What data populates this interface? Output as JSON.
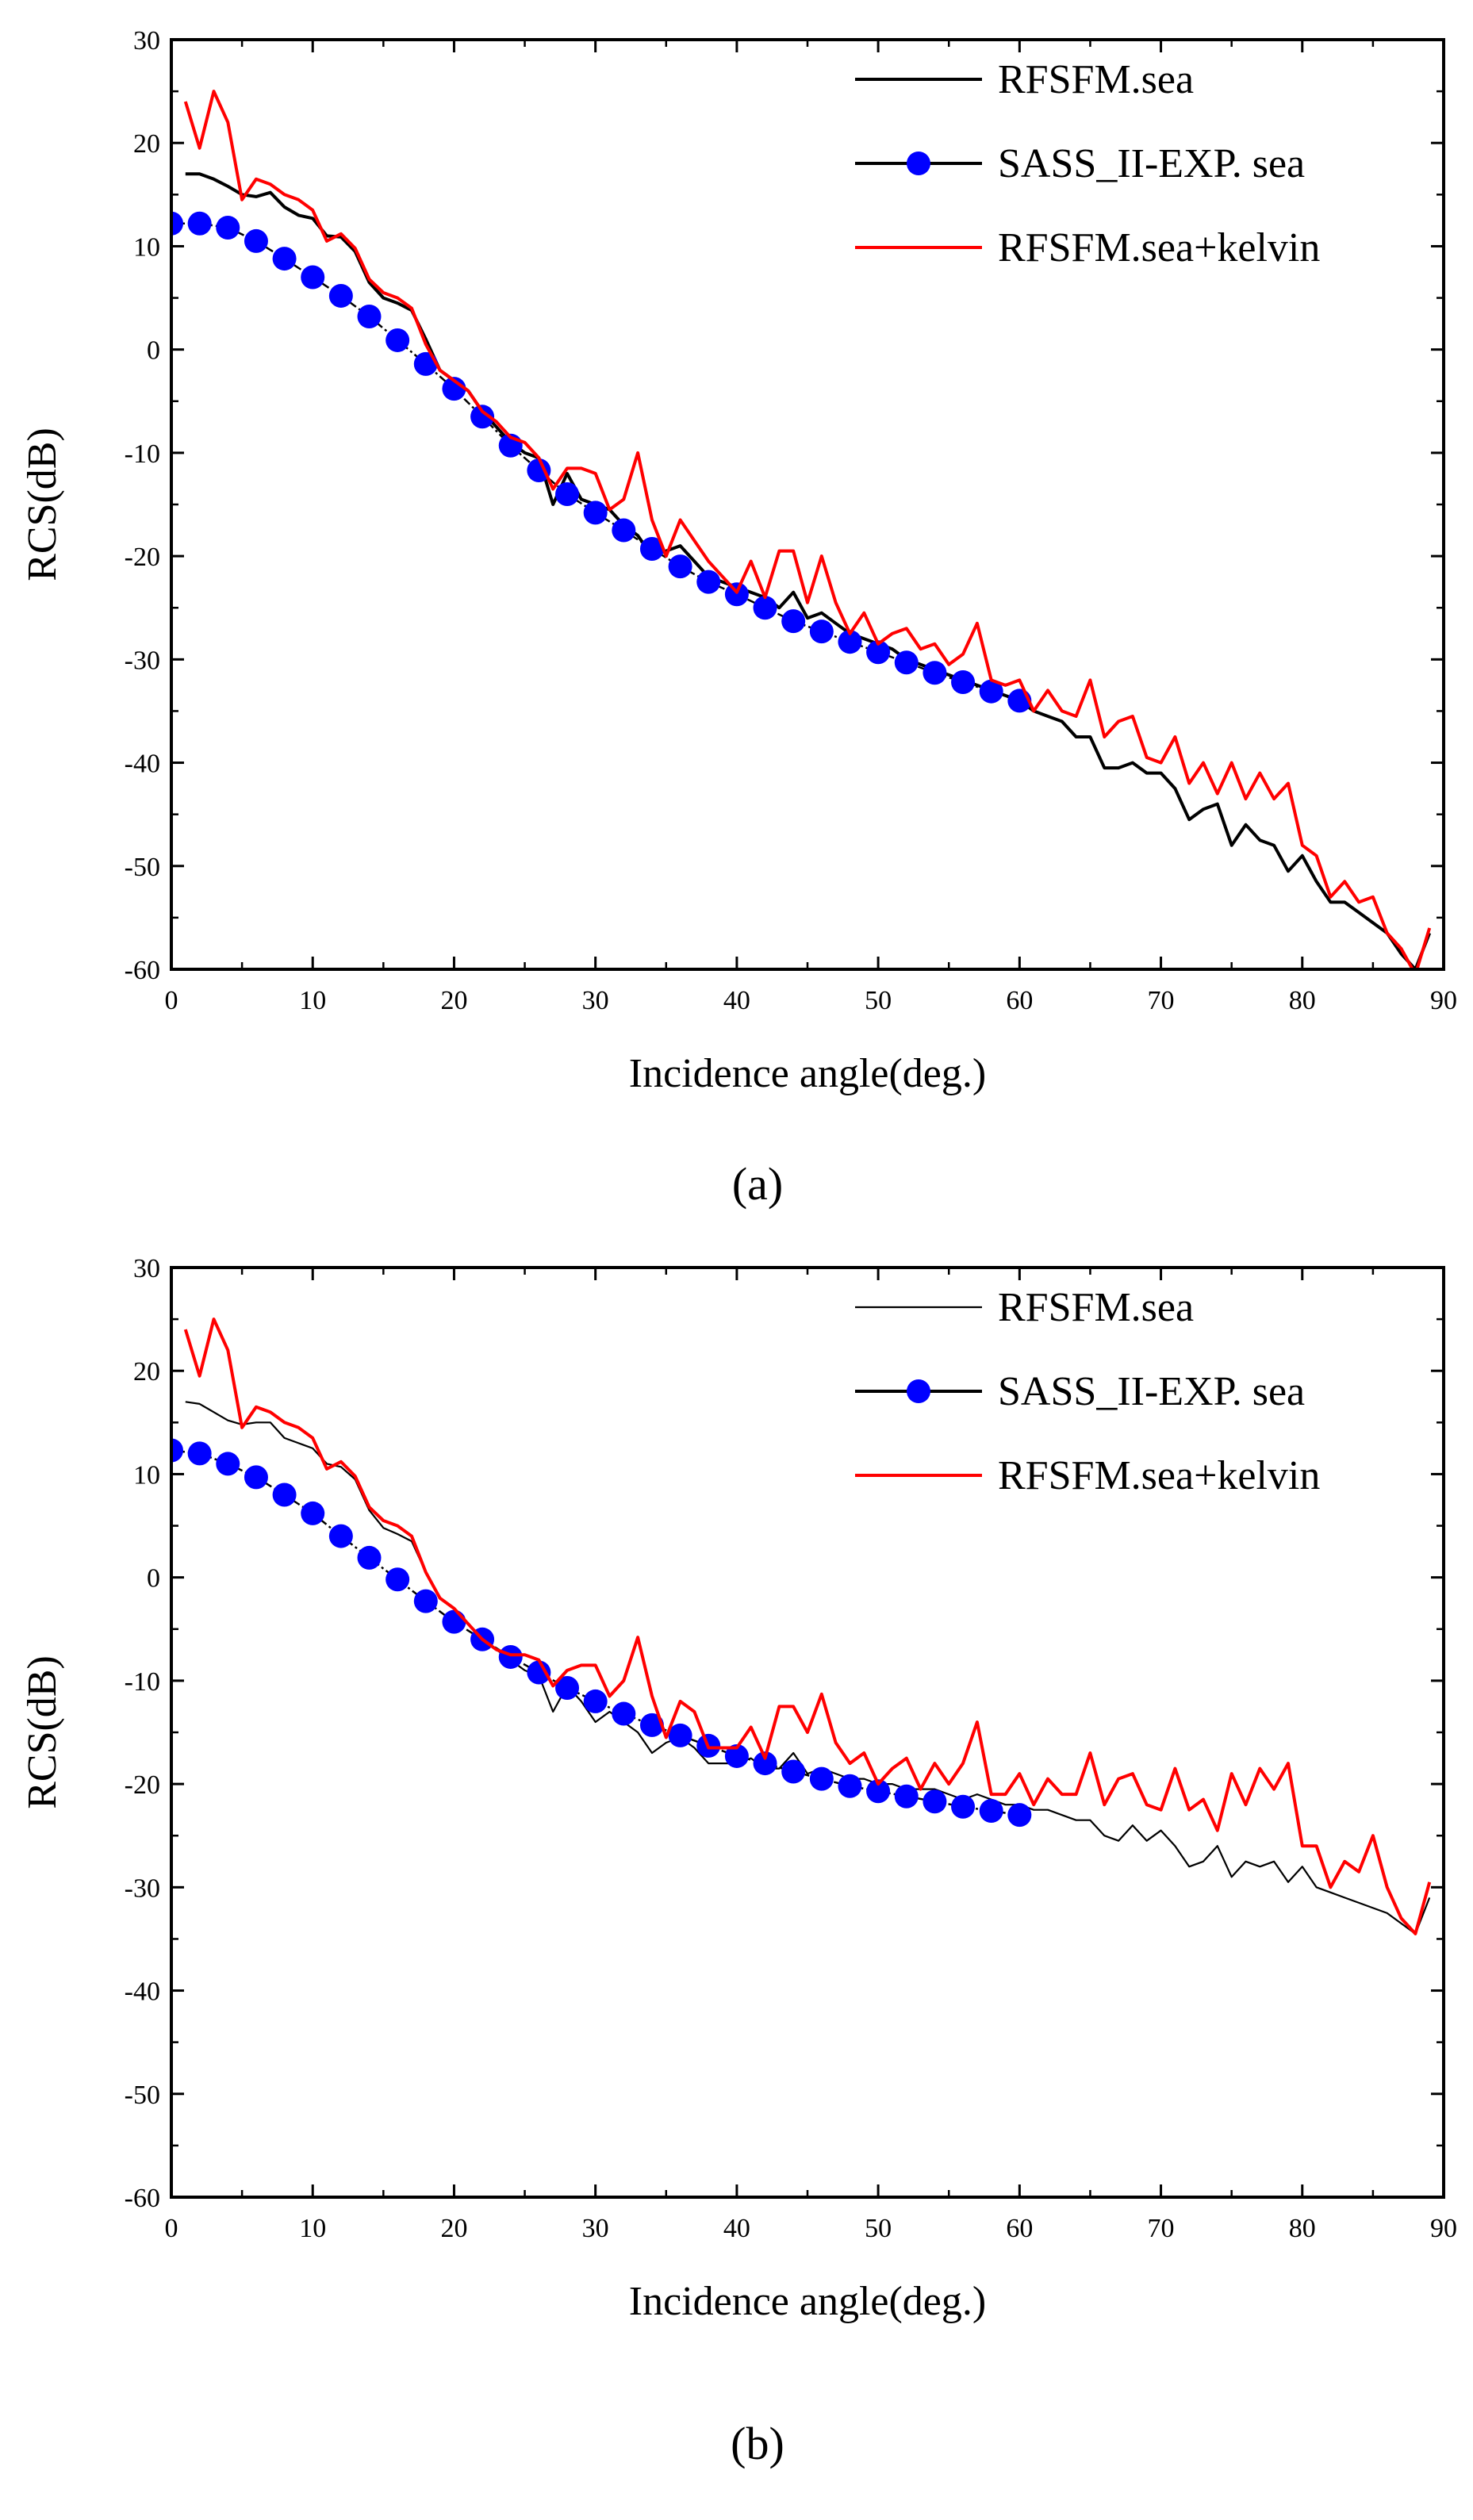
{
  "chart_data": [
    {
      "type": "line",
      "panel_label": "(a)",
      "xlabel": "Incidence angle(deg.)",
      "ylabel": "RCS(dB)",
      "xlim": [
        0,
        90
      ],
      "ylim": [
        -60,
        30
      ],
      "xticks": [
        0,
        10,
        20,
        30,
        40,
        50,
        60,
        70,
        80,
        90
      ],
      "yticks": [
        30,
        20,
        10,
        0,
        -10,
        -20,
        -30,
        -40,
        -50,
        -60
      ],
      "legend_position": "top-right",
      "series": [
        {
          "name": "RFSFM.sea",
          "color": "#000000",
          "style": "line",
          "x": [
            1,
            2,
            3,
            4,
            5,
            6,
            7,
            8,
            9,
            10,
            11,
            12,
            13,
            14,
            15,
            16,
            17,
            18,
            19,
            20,
            21,
            22,
            23,
            24,
            25,
            26,
            27,
            28,
            29,
            30,
            31,
            32,
            33,
            34,
            35,
            36,
            37,
            38,
            39,
            40,
            41,
            42,
            43,
            44,
            45,
            46,
            47,
            48,
            49,
            50,
            51,
            52,
            53,
            54,
            55,
            56,
            57,
            58,
            59,
            60,
            61,
            62,
            63,
            64,
            65,
            66,
            67,
            68,
            69,
            70,
            71,
            72,
            73,
            74,
            75,
            76,
            77,
            78,
            79,
            80,
            81,
            82,
            83,
            84,
            85,
            86,
            87,
            88,
            89
          ],
          "y": [
            17.0,
            17.0,
            16.5,
            15.8,
            15.0,
            14.8,
            15.2,
            13.8,
            13.0,
            12.7,
            11.0,
            10.9,
            9.5,
            6.5,
            5.0,
            4.5,
            3.8,
            1.0,
            -2.0,
            -3.0,
            -4.0,
            -6.0,
            -7.5,
            -9.0,
            -10.0,
            -10.5,
            -15.0,
            -12.0,
            -14.5,
            -15.0,
            -15.5,
            -17.0,
            -18.0,
            -20.0,
            -19.5,
            -19.0,
            -20.5,
            -22.0,
            -22.5,
            -23.0,
            -23.5,
            -24.0,
            -25.0,
            -23.5,
            -26.0,
            -25.5,
            -26.5,
            -27.5,
            -28.0,
            -28.5,
            -29.0,
            -30.0,
            -30.5,
            -31.0,
            -31.5,
            -32.0,
            -32.5,
            -33.0,
            -33.5,
            -34.0,
            -35.0,
            -35.5,
            -36.0,
            -37.5,
            -37.5,
            -40.5,
            -40.5,
            -40.0,
            -41.0,
            -41.0,
            -42.5,
            -45.5,
            -44.5,
            -44.0,
            -48.0,
            -46.0,
            -47.5,
            -48.0,
            -50.5,
            -49.0,
            -51.5,
            -53.5,
            -53.5,
            -54.5,
            -55.5,
            -56.5,
            -58.5,
            -60.0,
            -56.5
          ]
        },
        {
          "name": "SASS_II-EXP. sea",
          "color": "#0000ff",
          "style": "line+marker",
          "x": [
            0,
            2,
            4,
            6,
            8,
            10,
            12,
            14,
            16,
            18,
            20,
            22,
            24,
            26,
            28,
            30,
            32,
            34,
            36,
            38,
            40,
            42,
            44,
            46,
            48,
            50,
            52,
            54,
            56,
            58,
            60
          ],
          "y": [
            12.2,
            12.2,
            11.8,
            10.5,
            8.8,
            7.0,
            5.2,
            3.2,
            0.9,
            -1.4,
            -3.8,
            -6.5,
            -9.3,
            -11.7,
            -14.0,
            -15.8,
            -17.5,
            -19.3,
            -21.0,
            -22.5,
            -23.7,
            -25.0,
            -26.3,
            -27.3,
            -28.3,
            -29.3,
            -30.3,
            -31.3,
            -32.2,
            -33.1,
            -34.0
          ]
        },
        {
          "name": "RFSFM.sea+kelvin",
          "color": "#ff0000",
          "style": "line",
          "x": [
            1,
            2,
            3,
            4,
            5,
            6,
            7,
            8,
            9,
            10,
            11,
            12,
            13,
            14,
            15,
            16,
            17,
            18,
            19,
            20,
            21,
            22,
            23,
            24,
            25,
            26,
            27,
            28,
            29,
            30,
            31,
            32,
            33,
            34,
            35,
            36,
            37,
            38,
            39,
            40,
            41,
            42,
            43,
            44,
            45,
            46,
            47,
            48,
            49,
            50,
            51,
            52,
            53,
            54,
            55,
            56,
            57,
            58,
            59,
            60,
            61,
            62,
            63,
            64,
            65,
            66,
            67,
            68,
            69,
            70,
            71,
            72,
            73,
            74,
            75,
            76,
            77,
            78,
            79,
            80,
            81,
            82,
            83,
            84,
            85,
            86,
            87,
            88,
            89
          ],
          "y": [
            24.0,
            19.5,
            25.0,
            22.0,
            14.5,
            16.5,
            16.0,
            15.0,
            14.5,
            13.5,
            10.5,
            11.2,
            9.8,
            6.8,
            5.5,
            5.0,
            4.0,
            0.5,
            -2.0,
            -3.0,
            -4.0,
            -6.0,
            -7.0,
            -8.5,
            -9.0,
            -10.5,
            -13.5,
            -11.5,
            -11.5,
            -12.0,
            -15.5,
            -14.5,
            -10.0,
            -16.5,
            -20.0,
            -16.5,
            -18.5,
            -20.5,
            -22.0,
            -23.5,
            -20.5,
            -24.0,
            -19.5,
            -19.5,
            -24.5,
            -20.0,
            -24.5,
            -27.5,
            -25.5,
            -28.5,
            -27.5,
            -27.0,
            -29.0,
            -28.5,
            -30.5,
            -29.5,
            -26.5,
            -32.0,
            -32.5,
            -32.0,
            -35.0,
            -33.0,
            -35.0,
            -35.5,
            -32.0,
            -37.5,
            -36.0,
            -35.5,
            -39.5,
            -40.0,
            -37.5,
            -42.0,
            -40.0,
            -43.0,
            -40.0,
            -43.5,
            -41.0,
            -43.5,
            -42.0,
            -48.0,
            -49.0,
            -53.0,
            -51.5,
            -53.5,
            -53.0,
            -56.5,
            -58.0,
            -60.5,
            -56.0
          ]
        }
      ]
    },
    {
      "type": "line",
      "panel_label": "(b)",
      "xlabel": "Incidence angle(deg.)",
      "ylabel": "RCS(dB)",
      "xlim": [
        0,
        90
      ],
      "ylim": [
        -60,
        30
      ],
      "xticks": [
        0,
        10,
        20,
        30,
        40,
        50,
        60,
        70,
        80,
        90
      ],
      "yticks": [
        30,
        20,
        10,
        0,
        -10,
        -20,
        -30,
        -40,
        -50,
        -60
      ],
      "legend_position": "top-right",
      "series": [
        {
          "name": "RFSFM.sea",
          "color": "#000000",
          "style": "thin-line",
          "x": [
            1,
            2,
            3,
            4,
            5,
            6,
            7,
            8,
            9,
            10,
            11,
            12,
            13,
            14,
            15,
            16,
            17,
            18,
            19,
            20,
            21,
            22,
            23,
            24,
            25,
            26,
            27,
            28,
            29,
            30,
            31,
            32,
            33,
            34,
            35,
            36,
            37,
            38,
            39,
            40,
            41,
            42,
            43,
            44,
            45,
            46,
            47,
            48,
            49,
            50,
            51,
            52,
            53,
            54,
            55,
            56,
            57,
            58,
            59,
            60,
            61,
            62,
            63,
            64,
            65,
            66,
            67,
            68,
            69,
            70,
            71,
            72,
            73,
            74,
            75,
            76,
            77,
            78,
            79,
            80,
            81,
            82,
            83,
            84,
            85,
            86,
            87,
            88,
            89
          ],
          "y": [
            17.0,
            16.8,
            16.0,
            15.2,
            14.8,
            15.0,
            15.0,
            13.5,
            13.0,
            12.5,
            11.0,
            10.7,
            9.5,
            6.5,
            4.8,
            4.2,
            3.5,
            0.5,
            -2.0,
            -3.0,
            -4.5,
            -6.0,
            -7.0,
            -8.0,
            -9.0,
            -9.5,
            -13.0,
            -10.5,
            -12.0,
            -14.0,
            -13.0,
            -14.0,
            -15.0,
            -17.0,
            -16.0,
            -15.5,
            -16.5,
            -18.0,
            -18.0,
            -18.0,
            -17.5,
            -18.5,
            -18.5,
            -17.0,
            -19.0,
            -18.5,
            -19.0,
            -19.5,
            -19.5,
            -20.0,
            -20.0,
            -20.5,
            -20.5,
            -20.5,
            -21.0,
            -21.5,
            -21.0,
            -21.5,
            -22.0,
            -22.0,
            -22.5,
            -22.5,
            -23.0,
            -23.5,
            -23.5,
            -25.0,
            -25.5,
            -24.0,
            -25.5,
            -24.5,
            -26.0,
            -28.0,
            -27.5,
            -26.0,
            -29.0,
            -27.5,
            -28.0,
            -27.5,
            -29.5,
            -28.0,
            -30.0,
            -30.5,
            -31.0,
            -31.5,
            -32.0,
            -32.5,
            -33.5,
            -34.5,
            -31.0
          ]
        },
        {
          "name": "SASS_II-EXP. sea",
          "color": "#0000ff",
          "style": "line+marker",
          "x": [
            0,
            2,
            4,
            6,
            8,
            10,
            12,
            14,
            16,
            18,
            20,
            22,
            24,
            26,
            28,
            30,
            32,
            34,
            36,
            38,
            40,
            42,
            44,
            46,
            48,
            50,
            52,
            54,
            56,
            58,
            60
          ],
          "y": [
            12.3,
            12.0,
            11.0,
            9.7,
            8.0,
            6.2,
            4.0,
            1.9,
            -0.2,
            -2.3,
            -4.3,
            -6.0,
            -7.7,
            -9.2,
            -10.7,
            -12.0,
            -13.2,
            -14.3,
            -15.3,
            -16.3,
            -17.3,
            -18.0,
            -18.8,
            -19.5,
            -20.2,
            -20.7,
            -21.2,
            -21.7,
            -22.2,
            -22.6,
            -23.0
          ]
        },
        {
          "name": "RFSFM.sea+kelvin",
          "color": "#ff0000",
          "style": "line",
          "x": [
            1,
            2,
            3,
            4,
            5,
            6,
            7,
            8,
            9,
            10,
            11,
            12,
            13,
            14,
            15,
            16,
            17,
            18,
            19,
            20,
            21,
            22,
            23,
            24,
            25,
            26,
            27,
            28,
            29,
            30,
            31,
            32,
            33,
            34,
            35,
            36,
            37,
            38,
            39,
            40,
            41,
            42,
            43,
            44,
            45,
            46,
            47,
            48,
            49,
            50,
            51,
            52,
            53,
            54,
            55,
            56,
            57,
            58,
            59,
            60,
            61,
            62,
            63,
            64,
            65,
            66,
            67,
            68,
            69,
            70,
            71,
            72,
            73,
            74,
            75,
            76,
            77,
            78,
            79,
            80,
            81,
            82,
            83,
            84,
            85,
            86,
            87,
            88,
            89
          ],
          "y": [
            24.0,
            19.5,
            25.0,
            22.0,
            14.5,
            16.5,
            16.0,
            15.0,
            14.5,
            13.5,
            10.5,
            11.2,
            9.8,
            6.8,
            5.5,
            5.0,
            4.0,
            0.5,
            -2.0,
            -3.0,
            -4.5,
            -6.0,
            -7.0,
            -7.5,
            -7.5,
            -8.0,
            -10.5,
            -9.0,
            -8.5,
            -8.5,
            -11.5,
            -10.0,
            -5.8,
            -11.5,
            -15.5,
            -12.0,
            -13.0,
            -16.5,
            -16.5,
            -16.5,
            -14.5,
            -17.5,
            -12.5,
            -12.5,
            -15.0,
            -11.3,
            -16.0,
            -18.0,
            -17.0,
            -20.0,
            -18.5,
            -17.5,
            -20.5,
            -18.0,
            -20.0,
            -18.0,
            -14.0,
            -21.0,
            -21.0,
            -19.0,
            -22.0,
            -19.5,
            -21.0,
            -21.0,
            -17.0,
            -22.0,
            -19.5,
            -19.0,
            -22.0,
            -22.5,
            -18.5,
            -22.5,
            -21.5,
            -24.5,
            -19.0,
            -22.0,
            -18.5,
            -20.5,
            -18.0,
            -26.0,
            -26.0,
            -30.0,
            -27.5,
            -28.5,
            -25.0,
            -30.0,
            -33.0,
            -34.5,
            -29.5
          ]
        }
      ]
    }
  ]
}
